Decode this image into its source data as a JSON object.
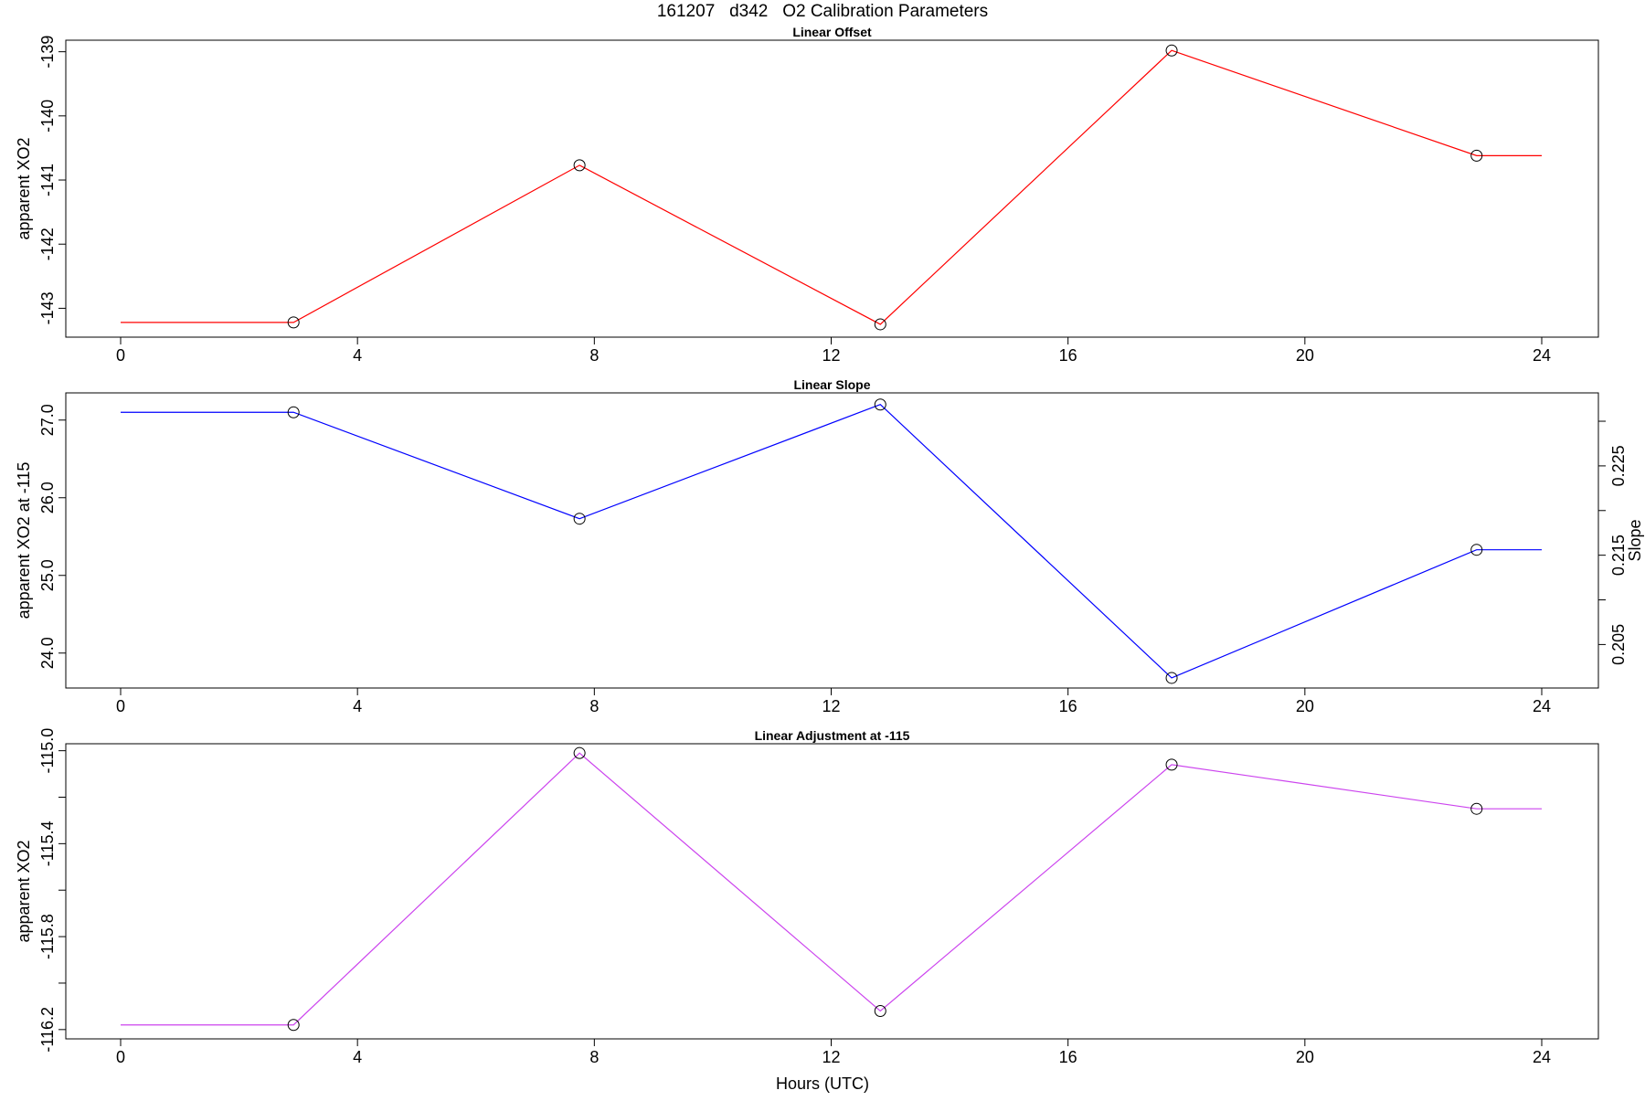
{
  "figure": {
    "title": "161207   d342   O2 Calibration Parameters",
    "xlabel": "Hours (UTC)"
  },
  "chart_data": [
    {
      "type": "line",
      "title": "Linear Offset",
      "ylabel": "apparent XO2",
      "xlabel": "Hours (UTC)",
      "color": "#ff0000",
      "xlim": [
        0,
        24
      ],
      "xticks": [
        0,
        4,
        8,
        12,
        16,
        20,
        24
      ],
      "ylim": [
        -143.45,
        -138.82
      ],
      "yticks": [
        -143,
        -142,
        -141,
        -140,
        -139
      ],
      "grid": false,
      "points": [
        {
          "x": 2.92,
          "y": -143.22
        },
        {
          "x": 7.75,
          "y": -140.77
        },
        {
          "x": 12.83,
          "y": -143.25
        },
        {
          "x": 17.75,
          "y": -138.98
        },
        {
          "x": 22.9,
          "y": -140.62
        }
      ],
      "line_start": {
        "x": 0,
        "y": -143.22
      },
      "line_end": {
        "x": 24,
        "y": -140.62
      }
    },
    {
      "type": "line",
      "title": "Linear Slope",
      "ylabel": "apparent XO2 at -115",
      "y2label": "Slope",
      "xlabel": "Hours (UTC)",
      "color": "#0000ff",
      "xlim": [
        0,
        24
      ],
      "xticks": [
        0,
        4,
        8,
        12,
        16,
        20,
        24
      ],
      "ylim": [
        23.55,
        27.35
      ],
      "yticks": [
        24.0,
        25.0,
        26.0,
        27.0
      ],
      "ytick_labels": [
        "24.0",
        "25.0",
        "26.0",
        "27.0"
      ],
      "y2_axis": {
        "side": "right",
        "tick_labels": [
          "0.205",
          "0.215",
          "0.225"
        ],
        "tick_values_in_left_units": [
          24.11,
          25.26,
          26.41
        ],
        "minor_ticks_in_left_units": [
          24.685,
          25.835,
          26.985
        ]
      },
      "grid": false,
      "points": [
        {
          "x": 2.92,
          "y": 27.1
        },
        {
          "x": 7.75,
          "y": 25.73
        },
        {
          "x": 12.83,
          "y": 27.2
        },
        {
          "x": 17.75,
          "y": 23.68
        },
        {
          "x": 22.9,
          "y": 25.33
        }
      ],
      "line_start": {
        "x": 0,
        "y": 27.1
      },
      "line_end": {
        "x": 24,
        "y": 25.33
      }
    },
    {
      "type": "line",
      "title": "Linear Adjustment at -115",
      "ylabel": "apparent XO2",
      "xlabel": "Hours (UTC)",
      "color": "#cc44ee",
      "xlim": [
        0,
        24
      ],
      "xticks": [
        0,
        4,
        8,
        12,
        16,
        20,
        24
      ],
      "ylim": [
        -116.24,
        -114.97
      ],
      "yticks": [
        -116.2,
        -115.8,
        -115.4,
        -115.0
      ],
      "ytick_labels": [
        "-116.2",
        "-115.8",
        "-115.4",
        "-115.0"
      ],
      "yminor_ticks": [
        -116.0,
        -115.6,
        -115.2
      ],
      "grid": false,
      "points": [
        {
          "x": 2.92,
          "y": -116.18
        },
        {
          "x": 7.75,
          "y": -115.01
        },
        {
          "x": 12.83,
          "y": -116.12
        },
        {
          "x": 17.75,
          "y": -115.06
        },
        {
          "x": 22.9,
          "y": -115.25
        }
      ],
      "line_start": {
        "x": 0,
        "y": -116.18
      },
      "line_end": {
        "x": 24,
        "y": -115.25
      }
    }
  ]
}
